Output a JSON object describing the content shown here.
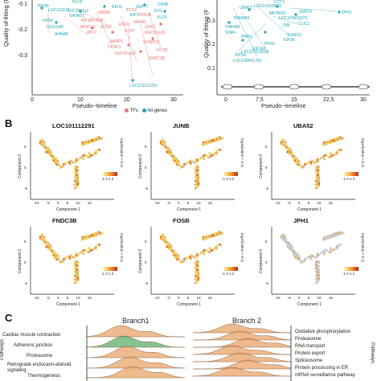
{
  "panelA": {
    "left": {
      "ylabel": "Quality of fitting (F",
      "xlabel": "Pseudo−timeline",
      "y_ticks": [
        "-0.1",
        "-0.2",
        "-0.3"
      ],
      "x_ticks": [
        "10",
        "20",
        "30"
      ],
      "x0_tick": "0",
      "legend": [
        {
          "label": "TFs",
          "color": "#e4716f"
        },
        {
          "label": "All genes",
          "color": "#1aa6b3"
        }
      ],
      "teal_labels": [
        "PFDN",
        "FNSP",
        "GOLGA4",
        "AHNAK",
        "LOC101112291",
        "PLCF",
        "LOC101112",
        "GATAD1",
        "REV5",
        "EIF1",
        "EFG",
        "KLF6",
        "SEPT7",
        "JUNB",
        "LOC101119",
        "FEE",
        "GFG"
      ],
      "red_labels": [
        "ATF3",
        "JMJD1C",
        "IRF1",
        "ZBTB38",
        "ZC3H",
        "EGR1",
        "STST",
        "NR4A1",
        "AKAP5",
        "CCNL1",
        "SYNPO2",
        "KEF33-p03",
        "FOSB",
        "FNDC3B",
        "KEF33-p10",
        "ZHX2",
        "BTG2",
        "TRA2B",
        "SIRRE"
      ]
    },
    "right": {
      "ylabel": "Quality of fitting (F",
      "xlabel": "Pseudo−timeline",
      "y_ticks": [
        "0.3",
        "0.2",
        "0.1"
      ],
      "x_ticks": [
        "0",
        "7.5",
        "15",
        "22.5",
        "30"
      ],
      "teal_labels": [
        "LOC101106021",
        "SRP14",
        "JPH1",
        "CLIC1",
        "UBA52",
        "DBI",
        "SUMO2",
        "EIF3K",
        "PFN1",
        "LOC105601873",
        "RPS4",
        "YWHAB",
        "EIF1AX",
        "LOC101119038",
        "SSR4",
        "LOC100091783",
        "CCT3",
        "MFPM15",
        "TMEM59",
        "PNRC"
      ]
    }
  },
  "panelB": {
    "letter": "B",
    "legend_title": "log10(value + 0.1)",
    "legend_ticks": [
      "-1",
      "0",
      "1",
      "2"
    ],
    "xlabel": "Component 1",
    "ylabel": "Component 2",
    "x_ticks": [
      "-10",
      "-5",
      "0",
      "5",
      "10",
      "15"
    ],
    "y_ticks": [
      "-5",
      "0",
      "5"
    ],
    "genes": [
      "LOC101112291",
      "JUNB",
      "UBA52",
      "FNDC3B",
      "FOSB",
      "JPH1"
    ]
  },
  "panelC": {
    "letter": "C",
    "branch1": "Branch1",
    "branch2": "Branch 2",
    "left_pathways": [
      "Cardiac muscle contraction",
      "Adherens junction",
      "Proteasome",
      "Retrograde endocann-abinoid signaling",
      "Thermogenesis"
    ],
    "right_pathways": [
      "Oxidative phosphorylation",
      "Proteasome",
      "RNA transport",
      "Protein export",
      "Spliceosome",
      "Protein processing in ER",
      "mRNA surveillance pathway"
    ],
    "side_label": "Pathways",
    "colors": {
      "orange": "#e8a36a",
      "green": "#5fae6c"
    }
  }
}
